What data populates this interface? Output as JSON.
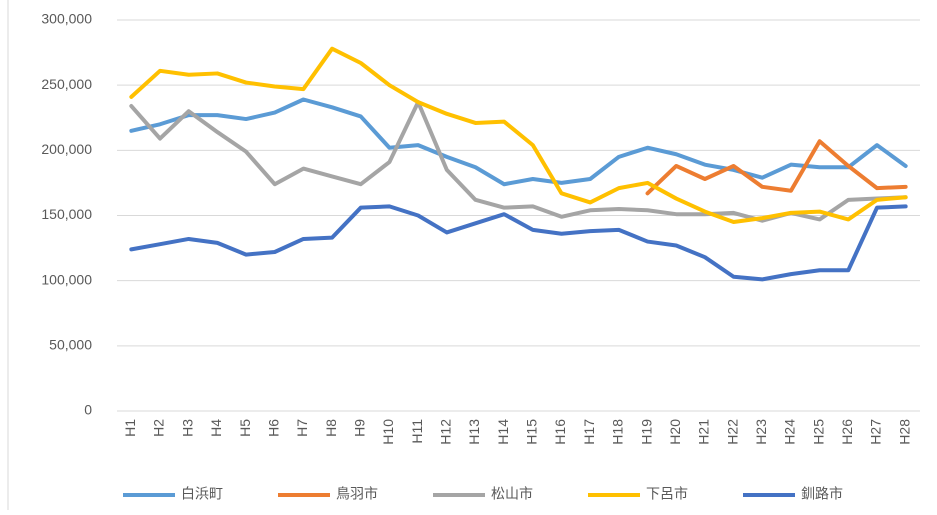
{
  "chart_data": {
    "type": "line",
    "categories": [
      "H1",
      "H2",
      "H3",
      "H4",
      "H5",
      "H6",
      "H7",
      "H8",
      "H9",
      "H10",
      "H11",
      "H12",
      "H13",
      "H14",
      "H15",
      "H16",
      "H17",
      "H18",
      "H19",
      "H20",
      "H21",
      "H22",
      "H23",
      "H24",
      "H25",
      "H26",
      "H27",
      "H28"
    ],
    "series": [
      {
        "name": "白浜町",
        "color": "#5B9BD5",
        "values": [
          215000,
          220000,
          227000,
          227000,
          224000,
          229000,
          239000,
          233000,
          226000,
          202000,
          204000,
          195000,
          187000,
          174000,
          178000,
          175000,
          178000,
          195000,
          202000,
          197000,
          189000,
          185000,
          179000,
          189000,
          187000,
          187000,
          204000,
          188000
        ]
      },
      {
        "name": "鳥羽市",
        "color": "#ED7D31",
        "values": [
          null,
          null,
          null,
          null,
          null,
          null,
          null,
          null,
          null,
          null,
          null,
          null,
          null,
          null,
          null,
          null,
          null,
          null,
          167000,
          188000,
          178000,
          188000,
          172000,
          169000,
          207000,
          188000,
          171000,
          172000
        ]
      },
      {
        "name": "松山市",
        "color": "#A5A5A5",
        "values": [
          234000,
          209000,
          230000,
          214000,
          199000,
          174000,
          186000,
          180000,
          174000,
          191000,
          237000,
          185000,
          162000,
          156000,
          157000,
          149000,
          154000,
          155000,
          154000,
          151000,
          151000,
          152000,
          146000,
          152000,
          147000,
          162000,
          163000,
          164000
        ]
      },
      {
        "name": "下呂市",
        "color": "#FFC000",
        "values": [
          241000,
          261000,
          258000,
          259000,
          252000,
          249000,
          247000,
          278000,
          267000,
          250000,
          237000,
          228000,
          221000,
          222000,
          204000,
          167000,
          160000,
          171000,
          175000,
          163000,
          153000,
          145000,
          148000,
          152000,
          153000,
          147000,
          162000,
          164000
        ]
      },
      {
        "name": "釧路市",
        "color": "#4472C4",
        "values": [
          124000,
          128000,
          132000,
          129000,
          120000,
          122000,
          132000,
          133000,
          156000,
          157000,
          150000,
          137000,
          144000,
          151000,
          139000,
          136000,
          138000,
          139000,
          130000,
          127000,
          118000,
          103000,
          101000,
          105000,
          108000,
          108000,
          156000,
          157000
        ]
      }
    ],
    "ylim": [
      0,
      300000
    ],
    "yticks": [
      0,
      {
        "value": 50000,
        "label": "50,000"
      },
      {
        "value": 100000,
        "label": "100,000"
      },
      {
        "value": 150000,
        "label": "150,000"
      },
      {
        "value": 200000,
        "label": "200,000"
      },
      {
        "value": 250000,
        "label": "250,000"
      },
      {
        "value": 300000,
        "label": "300,000"
      }
    ],
    "grid": true,
    "legend": "bottom"
  }
}
